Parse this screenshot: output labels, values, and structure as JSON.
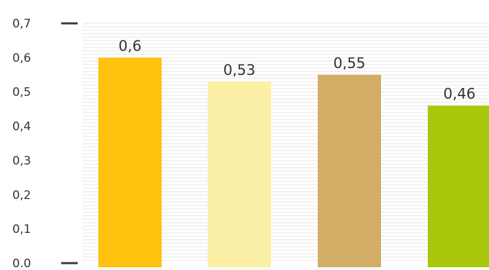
{
  "chart_data": {
    "type": "bar",
    "title": "",
    "xlabel": "",
    "ylabel": "",
    "categories": [
      "",
      "",
      "",
      ""
    ],
    "values": [
      0.6,
      0.53,
      0.55,
      0.46
    ],
    "value_labels": [
      "0,6",
      "0,53",
      "0,55",
      "0,46"
    ],
    "bar_colors": [
      "#FFC20E",
      "#FCEFA6",
      "#D1AD66",
      "#ABC70C"
    ],
    "ylim": [
      0,
      0.7
    ],
    "yticks": [
      0,
      0.1,
      0.2,
      0.3,
      0.4,
      0.5,
      0.6,
      0.7
    ],
    "ytick_labels": [
      "0,0",
      "0,1",
      "0,2",
      "0,3",
      "0,4",
      "0,5",
      "0,6",
      "0,7"
    ],
    "grid": "horizontal-fine",
    "grid_color": "#E6E6E6",
    "text_color": "#333333"
  }
}
